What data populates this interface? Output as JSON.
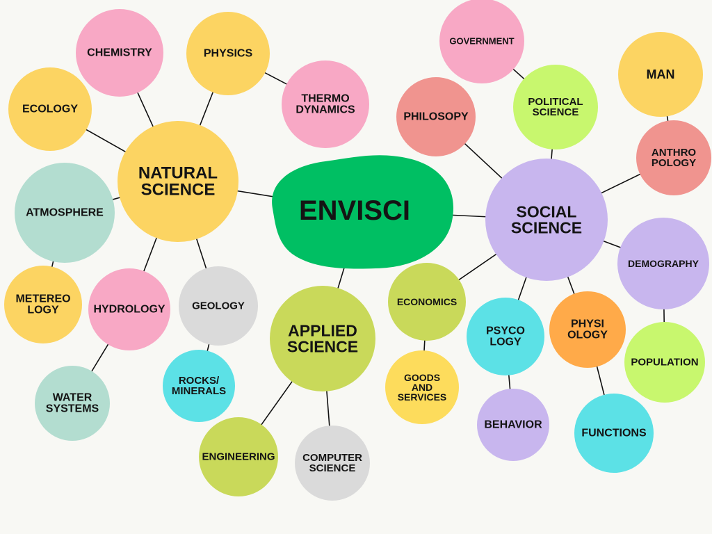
{
  "center": {
    "label": [
      "ENVISCI"
    ],
    "color": "#00bf63"
  },
  "colors": {
    "yellow": "#fcd462",
    "pink": "#f8a8c5",
    "green_light": "#c9d95a",
    "mint": "#b3ddd0",
    "lavender": "#c8b6ee",
    "cyan": "#5ce1e6",
    "salmon": "#f0948f",
    "lime": "#c8f76e",
    "orange": "#ffaa49",
    "gray": "#dadada",
    "gold": "#fddc5c",
    "line": "#111111"
  },
  "nodes": [
    {
      "id": "natural",
      "label": [
        "NATURAL",
        "SCIENCE"
      ],
      "color": "#fcd462"
    },
    {
      "id": "applied",
      "label": [
        "APPLIED",
        "SCIENCE"
      ],
      "color": "#c9d95a"
    },
    {
      "id": "social",
      "label": [
        "SOCIAL",
        "SCIENCE"
      ],
      "color": "#c8b6ee"
    },
    {
      "id": "chemistry",
      "label": [
        "CHEMISTRY"
      ],
      "color": "#f8a8c5"
    },
    {
      "id": "physics",
      "label": [
        "PHYSICS"
      ],
      "color": "#fcd462"
    },
    {
      "id": "thermo",
      "label": [
        "THERMO",
        "DYNAMICS"
      ],
      "color": "#f8a8c5"
    },
    {
      "id": "ecology",
      "label": [
        "ECOLOGY"
      ],
      "color": "#fcd462"
    },
    {
      "id": "atmosphere",
      "label": [
        "ATMOSPHERE"
      ],
      "color": "#b3ddd0"
    },
    {
      "id": "metereology",
      "label": [
        "METEREO",
        "LOGY"
      ],
      "color": "#fcd462"
    },
    {
      "id": "hydrology",
      "label": [
        "HYDROLOGY"
      ],
      "color": "#f8a8c5"
    },
    {
      "id": "water",
      "label": [
        "WATER",
        "SYSTEMS"
      ],
      "color": "#b3ddd0"
    },
    {
      "id": "geology",
      "label": [
        "GEOLOGY"
      ],
      "color": "#dadada"
    },
    {
      "id": "rocks",
      "label": [
        "ROCKS/",
        "MINERALS"
      ],
      "color": "#5ce1e6"
    },
    {
      "id": "engineering",
      "label": [
        "ENGINEERING"
      ],
      "color": "#c9d95a"
    },
    {
      "id": "computer",
      "label": [
        "COMPUTER",
        "SCIENCE"
      ],
      "color": "#dadada"
    },
    {
      "id": "government",
      "label": [
        "GOVERNMENT"
      ],
      "color": "#f8a8c5"
    },
    {
      "id": "political",
      "label": [
        "POLITICAL",
        "SCIENCE"
      ],
      "color": "#c8f76e"
    },
    {
      "id": "philosophy",
      "label": [
        "PHILOSOPY"
      ],
      "color": "#f0948f"
    },
    {
      "id": "man",
      "label": [
        "MAN"
      ],
      "color": "#fcd462"
    },
    {
      "id": "anthropology",
      "label": [
        "ANTHRO",
        "POLOGY"
      ],
      "color": "#f0948f"
    },
    {
      "id": "demography",
      "label": [
        "DEMOGRAPHY"
      ],
      "color": "#c8b6ee"
    },
    {
      "id": "population",
      "label": [
        "POPULATION"
      ],
      "color": "#c8f76e"
    },
    {
      "id": "economics",
      "label": [
        "ECONOMICS"
      ],
      "color": "#c9d95a"
    },
    {
      "id": "goods",
      "label": [
        "GOODS",
        "AND",
        "SERVICES"
      ],
      "color": "#fddc5c"
    },
    {
      "id": "psychology",
      "label": [
        "PSYCO",
        "LOGY"
      ],
      "color": "#5ce1e6"
    },
    {
      "id": "behavior",
      "label": [
        "BEHAVIOR"
      ],
      "color": "#c8b6ee"
    },
    {
      "id": "physiology",
      "label": [
        "PHYSI",
        "OLOGY"
      ],
      "color": "#ffaa49"
    },
    {
      "id": "functions",
      "label": [
        "FUNCTIONS"
      ],
      "color": "#5ce1e6"
    }
  ],
  "edges": [
    [
      "center",
      "natural"
    ],
    [
      "center",
      "applied"
    ],
    [
      "center",
      "social"
    ],
    [
      "natural",
      "chemistry"
    ],
    [
      "natural",
      "physics"
    ],
    [
      "physics",
      "thermo"
    ],
    [
      "natural",
      "ecology"
    ],
    [
      "natural",
      "atmosphere"
    ],
    [
      "atmosphere",
      "metereology"
    ],
    [
      "natural",
      "hydrology"
    ],
    [
      "hydrology",
      "water"
    ],
    [
      "natural",
      "geology"
    ],
    [
      "geology",
      "rocks"
    ],
    [
      "applied",
      "engineering"
    ],
    [
      "applied",
      "computer"
    ],
    [
      "social",
      "political"
    ],
    [
      "political",
      "government"
    ],
    [
      "social",
      "philosophy"
    ],
    [
      "social",
      "anthropology"
    ],
    [
      "anthropology",
      "man"
    ],
    [
      "social",
      "demography"
    ],
    [
      "demography",
      "population"
    ],
    [
      "social",
      "economics"
    ],
    [
      "economics",
      "goods"
    ],
    [
      "social",
      "psychology"
    ],
    [
      "psychology",
      "behavior"
    ],
    [
      "social",
      "physiology"
    ],
    [
      "physiology",
      "functions"
    ]
  ]
}
